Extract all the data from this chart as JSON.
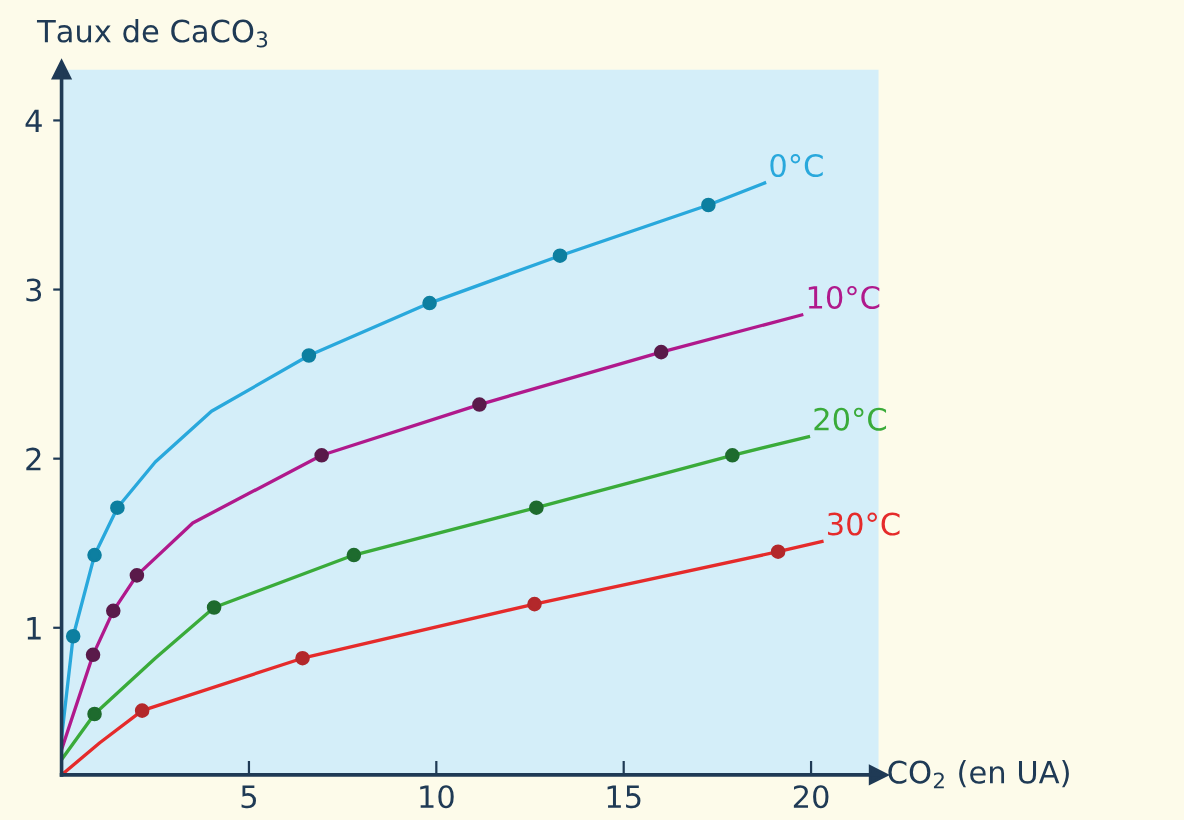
{
  "chart_data": {
    "type": "line",
    "xlabel": "CO$_{2}$ (en UA)",
    "ylabel": "Taux de CaCO$_{3}$",
    "xlim": [
      0,
      21.8
    ],
    "ylim": [
      0.13,
      4.3
    ],
    "xticks": [
      5,
      10,
      15,
      20
    ],
    "yticks": [
      1,
      2,
      3,
      4
    ],
    "grid": false,
    "legend": false,
    "series": [
      {
        "type": "line",
        "name": "0°C",
        "color": "#29a8dc",
        "x": [
          0,
          0.31,
          0.88,
          1.49,
          2.5,
          4,
          6.6,
          9.82,
          13.3,
          17.26,
          18.76
        ],
        "values": [
          0.35,
          0.95,
          1.43,
          1.71,
          1.98,
          2.28,
          2.61,
          2.92,
          3.2,
          3.5,
          3.63
        ]
      },
      {
        "type": "line",
        "name": "10°C",
        "color": "#b0198c",
        "x": [
          0,
          0.84,
          1.38,
          2.01,
          3.5,
          6.94,
          11.15,
          16.0,
          19.75
        ],
        "values": [
          0.28,
          0.84,
          1.1,
          1.31,
          1.62,
          2.02,
          2.32,
          2.63,
          2.85
        ]
      },
      {
        "type": "line",
        "name": "20°C",
        "color": "#3aab3a",
        "x": [
          0,
          0.88,
          2.5,
          4.07,
          7.8,
          12.67,
          17.9,
          19.93
        ],
        "values": [
          0.22,
          0.49,
          0.82,
          1.12,
          1.43,
          1.71,
          2.02,
          2.13
        ]
      },
      {
        "type": "line",
        "name": "30°C",
        "color": "#e52b2b",
        "x": [
          0,
          1.02,
          2.15,
          6.43,
          12.62,
          19.12,
          20.29
        ],
        "values": [
          0.13,
          0.32,
          0.51,
          0.82,
          1.14,
          1.45,
          1.51
        ]
      },
      {
        "type": "scatter",
        "color": "#0d7fa0",
        "marker": "circle",
        "x": [
          0.31,
          0.88,
          1.49,
          6.6,
          9.82,
          13.3,
          17.26
        ],
        "values": [
          0.95,
          1.43,
          1.71,
          2.61,
          2.92,
          3.2,
          3.5
        ]
      },
      {
        "type": "scatter",
        "color": "#5a1a4a",
        "marker": "circle",
        "x": [
          0.84,
          1.38,
          2.01,
          6.94,
          11.15,
          16.0
        ],
        "values": [
          0.84,
          1.1,
          1.31,
          2.02,
          2.32,
          2.63
        ]
      },
      {
        "type": "scatter",
        "color": "#1e6b2e",
        "marker": "circle",
        "x": [
          0.88,
          4.07,
          7.8,
          12.67,
          17.9
        ],
        "values": [
          0.49,
          1.12,
          1.43,
          1.71,
          2.02
        ]
      },
      {
        "type": "scatter",
        "color": "#b3282b",
        "marker": "circle",
        "x": [
          2.15,
          6.43,
          12.62,
          19.12
        ],
        "values": [
          0.51,
          0.82,
          1.14,
          1.45
        ]
      }
    ]
  }
}
